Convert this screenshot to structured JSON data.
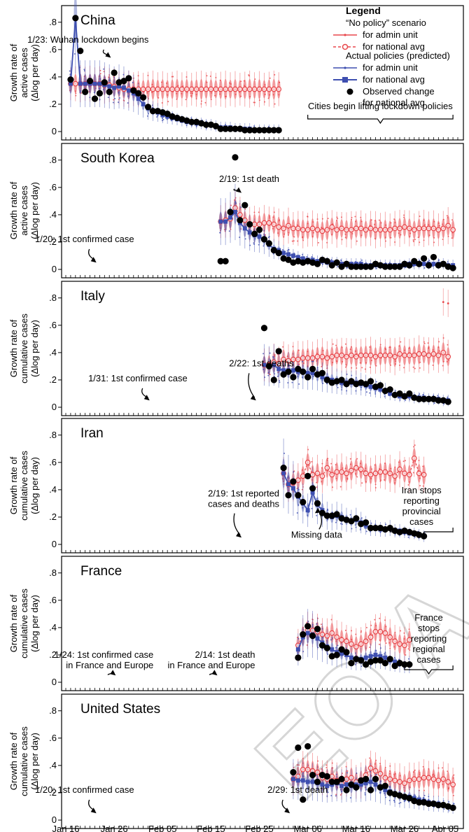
{
  "legend": {
    "title": "Legend",
    "group1_title": "“No policy” scenario",
    "group1_admin": "for admin unit",
    "group1_nat": "for national avg",
    "group2_title": "Actual policies (predicted)",
    "group2_admin": "for admin unit",
    "group2_nat": "for national avg",
    "obs_line1": "Observed change",
    "obs_line2": "for national avg"
  },
  "colors": {
    "no_policy": "#e8474b",
    "actual": "#3e4fb0",
    "observed": "#000000"
  },
  "x_ticks": [
    "Jan 16",
    "Jan 26",
    "Feb 05",
    "Feb 15",
    "Feb 25",
    "Mar 06",
    "Mar 16",
    "Mar 26",
    "Apr 05"
  ],
  "watermark": "EO A",
  "chart_data": [
    {
      "type": "line",
      "title": "China",
      "ylabel_1": "Growth rate of",
      "ylabel_2": "active cases",
      "ylabel_3": "(Δlog per day)",
      "ylim": [
        0,
        0.85
      ],
      "yticks": [
        0,
        0.2,
        0.4,
        0.6,
        0.8
      ],
      "ytick_labels": [
        "0",
        ".2",
        ".4",
        ".6",
        ".8"
      ],
      "x_start": "2020-01-17",
      "x_end": "2020-02-29",
      "no_policy": [
        0.35,
        0.35,
        0.35,
        0.35,
        0.35,
        0.35,
        0.35,
        0.34,
        0.34,
        0.33,
        0.32,
        0.31,
        0.31,
        0.31,
        0.31,
        0.31,
        0.31,
        0.31,
        0.31,
        0.31,
        0.31,
        0.31,
        0.31,
        0.31,
        0.31,
        0.31,
        0.31,
        0.31,
        0.31,
        0.31,
        0.31,
        0.31,
        0.31,
        0.31,
        0.31,
        0.31,
        0.31,
        0.31,
        0.31,
        0.31,
        0.31,
        0.31,
        0.31,
        0.31
      ],
      "actual": [
        0.35,
        0.83,
        0.35,
        0.35,
        0.35,
        0.35,
        0.35,
        0.34,
        0.33,
        0.32,
        0.33,
        0.32,
        0.3,
        0.28,
        0.24,
        0.2,
        0.17,
        0.15,
        0.14,
        0.12,
        0.11,
        0.1,
        0.09,
        0.08,
        0.07,
        0.07,
        0.06,
        0.06,
        0.05,
        0.05,
        0.04,
        0.03,
        0.03,
        0.03,
        0.02,
        0.02,
        0.02,
        0.02,
        0.01,
        0.01,
        0.01,
        0.01,
        0.01,
        0.01
      ],
      "observed": [
        0.38,
        0.83,
        0.59,
        0.29,
        0.37,
        0.24,
        0.28,
        0.36,
        0.29,
        0.43,
        0.36,
        0.37,
        0.39,
        0.3,
        0.28,
        0.25,
        0.18,
        0.15,
        0.15,
        0.14,
        0.13,
        0.11,
        0.1,
        0.09,
        0.08,
        0.07,
        0.07,
        0.06,
        0.05,
        0.05,
        0.04,
        0.02,
        0.02,
        0.02,
        0.02,
        0.02,
        0.01,
        0.01,
        0.01,
        0.01,
        0.01,
        0.01,
        0.01,
        0.01
      ],
      "annotations": [
        {
          "text": "1/23: Wuhan lockdown begins",
          "date": "2020-01-23",
          "y": 0.65,
          "arrow_to": 0.54
        }
      ],
      "bracket": {
        "text": "Cities begin lifting lockdown policies",
        "from": "2020-03-06",
        "to": "2020-04-05"
      },
      "extra_admin": []
    },
    {
      "type": "line",
      "title": "South Korea",
      "ylabel_1": "Growth rate of",
      "ylabel_2": "active cases",
      "ylabel_3": "(Δlog per day)",
      "ylim": [
        0,
        0.85
      ],
      "yticks": [
        0,
        0.2,
        0.4,
        0.6,
        0.8
      ],
      "ytick_labels": [
        "0",
        ".2",
        ".4",
        ".6",
        ".8"
      ],
      "x_start": "2020-02-17",
      "x_end": "2020-04-05",
      "no_policy": [
        0.35,
        0.36,
        0.37,
        0.45,
        0.4,
        0.36,
        0.33,
        0.33,
        0.33,
        0.34,
        0.34,
        0.33,
        0.31,
        0.3,
        0.32,
        0.3,
        0.3,
        0.29,
        0.29,
        0.3,
        0.29,
        0.28,
        0.29,
        0.31,
        0.29,
        0.3,
        0.29,
        0.29,
        0.3,
        0.3,
        0.29,
        0.3,
        0.29,
        0.29,
        0.29,
        0.29,
        0.3,
        0.3,
        0.31,
        0.3,
        0.29,
        0.3,
        0.3,
        0.3,
        0.3,
        0.29,
        0.3,
        0.32,
        0.29
      ],
      "actual": [
        0.35,
        0.35,
        0.38,
        0.42,
        0.34,
        0.3,
        0.27,
        0.25,
        0.24,
        0.22,
        0.18,
        0.15,
        0.14,
        0.12,
        0.11,
        0.1,
        0.09,
        0.08,
        0.07,
        0.07,
        0.06,
        0.06,
        0.05,
        0.05,
        0.05,
        0.04,
        0.04,
        0.04,
        0.04,
        0.04,
        0.03,
        0.03,
        0.03,
        0.03,
        0.03,
        0.03,
        0.03,
        0.03,
        0.03,
        0.04,
        0.04,
        0.04,
        0.04,
        0.04,
        0.04,
        0.04,
        0.04,
        0.03,
        0.03
      ],
      "observed": [
        0.06,
        0.06,
        0.42,
        0.82,
        0.36,
        0.47,
        0.33,
        0.26,
        0.29,
        0.22,
        0.19,
        0.14,
        0.12,
        0.08,
        0.07,
        0.05,
        0.06,
        0.05,
        0.06,
        0.05,
        0.04,
        0.07,
        0.06,
        0.03,
        0.05,
        0.02,
        0.04,
        0.02,
        0.02,
        0.02,
        0.02,
        0.02,
        0.04,
        0.03,
        0.02,
        0.02,
        0.02,
        0.02,
        0.04,
        0.03,
        0.06,
        0.04,
        0.08,
        0.03,
        0.09,
        0.03,
        0.04,
        0.02,
        0.01
      ],
      "annotations": [
        {
          "text": "2/19: 1st death",
          "date": "2020-02-19",
          "y": 0.64,
          "arrow_to": 0.56
        },
        {
          "text": "1/20: 1st confirmed case",
          "date": "2020-01-20",
          "y": 0.2,
          "arrow_to": 0.05
        }
      ],
      "bracket": null,
      "extra_admin": []
    },
    {
      "type": "line",
      "title": "Italy",
      "ylabel_1": "Growth rate of",
      "ylabel_2": "cumulative cases",
      "ylabel_3": "(Δlog per day)",
      "ylim": [
        0,
        0.85
      ],
      "yticks": [
        0,
        0.2,
        0.4,
        0.6,
        0.8
      ],
      "ytick_labels": [
        "0",
        ".2",
        ".4",
        ".6",
        ".8"
      ],
      "x_start": "2020-02-26",
      "x_end": "2020-04-05",
      "no_policy": [
        0.31,
        0.31,
        0.33,
        0.32,
        0.35,
        0.34,
        0.35,
        0.35,
        0.36,
        0.36,
        0.36,
        0.37,
        0.37,
        0.36,
        0.37,
        0.38,
        0.38,
        0.37,
        0.38,
        0.37,
        0.38,
        0.38,
        0.38,
        0.37,
        0.38,
        0.38,
        0.38,
        0.37,
        0.39,
        0.38,
        0.38,
        0.38,
        0.39,
        0.39,
        0.38,
        0.39,
        0.38,
        0.4,
        0.37
      ],
      "actual": [
        0.31,
        0.3,
        0.31,
        0.28,
        0.27,
        0.27,
        0.27,
        0.26,
        0.26,
        0.25,
        0.25,
        0.24,
        0.22,
        0.21,
        0.2,
        0.19,
        0.18,
        0.18,
        0.18,
        0.18,
        0.17,
        0.16,
        0.15,
        0.14,
        0.13,
        0.12,
        0.1,
        0.09,
        0.08,
        0.08,
        0.08,
        0.07,
        0.07,
        0.07,
        0.06,
        0.06,
        0.06,
        0.05,
        0.05
      ],
      "observed": [
        0.58,
        0.3,
        0.2,
        0.41,
        0.24,
        0.26,
        0.22,
        0.28,
        0.26,
        0.22,
        0.28,
        0.24,
        0.25,
        0.2,
        0.18,
        0.19,
        0.2,
        0.17,
        0.19,
        0.17,
        0.18,
        0.17,
        0.19,
        0.15,
        0.16,
        0.12,
        0.13,
        0.09,
        0.1,
        0.08,
        0.1,
        0.07,
        0.06,
        0.06,
        0.06,
        0.06,
        0.05,
        0.05,
        0.04
      ],
      "annotations": [
        {
          "text": "2/22: 1st deaths",
          "date": "2020-02-22",
          "y": 0.3,
          "arrow_to": 0.05
        },
        {
          "text": "1/31: 1st confirmed case",
          "date": "2020-01-31",
          "y": 0.19,
          "arrow_to": 0.05
        }
      ],
      "bracket": null,
      "extra_admin": [
        {
          "date": "2020-04-03",
          "y": 0.77
        },
        {
          "date": "2020-04-04",
          "y": 0.76
        }
      ]
    },
    {
      "type": "line",
      "title": "Iran",
      "ylabel_1": "Growth rate of",
      "ylabel_2": "cumulative cases",
      "ylabel_3": "(Δlog per day)",
      "ylim": [
        0,
        0.85
      ],
      "yticks": [
        0,
        0.2,
        0.4,
        0.6,
        0.8
      ],
      "ytick_labels": [
        "0",
        ".2",
        ".4",
        ".6",
        ".8"
      ],
      "x_start": "2020-03-01",
      "x_end": "2020-03-21",
      "no_policy": [
        0.52,
        0.44,
        0.45,
        0.47,
        0.5,
        0.6,
        0.51,
        0.52,
        0.5,
        0.56,
        0.51,
        0.53,
        0.53,
        0.52,
        0.54,
        0.56,
        0.55,
        0.52,
        0.51,
        0.52,
        0.53,
        0.53,
        0.52,
        0.5,
        0.55,
        0.52,
        0.51,
        0.63,
        0.52,
        0.51
      ],
      "actual": [
        0.52,
        0.44,
        0.41,
        0.35,
        0.3,
        0.25,
        0.38,
        0.29,
        0.25,
        0.21,
        0.2,
        0.21,
        0.2,
        0.18,
        0.17,
        0.18,
        0.16,
        0.14,
        0.12,
        0.12,
        0.11,
        0.11,
        0.12,
        0.1,
        0.1,
        0.09,
        0.08,
        0.08,
        0.07,
        0.06
      ],
      "observed": [
        0.56,
        0.36,
        0.46,
        0.36,
        0.31,
        0.5,
        0.41,
        0.3,
        0.23,
        0.21,
        0.21,
        0.22,
        0.19,
        0.18,
        0.17,
        0.19,
        0.15,
        0.16,
        0.12,
        0.12,
        0.12,
        0.11,
        0.12,
        0.1,
        0.09,
        0.1,
        0.09,
        0.08,
        0.07,
        0.06
      ],
      "annotations": [
        {
          "text": "2/19: 1st reported",
          "text2": "cases and deaths",
          "date": "2020-02-19",
          "y": 0.35,
          "arrow_to": 0.05
        },
        {
          "text": "Missing data",
          "date": "2020-03-04",
          "y": 0.07,
          "arrow_to": 0.22
        }
      ],
      "bracket": {
        "text": "Iran stops",
        "text2": "reporting",
        "text3": "provincial",
        "text4": "cases",
        "from": "2020-03-23",
        "to": "2020-04-05"
      },
      "extra_admin": []
    },
    {
      "type": "line",
      "title": "France",
      "ylabel_1": "Growth rate of",
      "ylabel_2": "cumulative cases",
      "ylabel_3": "(Δlog per day)",
      "ylim": [
        0,
        0.85
      ],
      "yticks": [
        0,
        0.2,
        0.4,
        0.6,
        0.8
      ],
      "ytick_labels": [
        "0",
        ".2",
        ".4",
        ".6",
        ".8"
      ],
      "x_start": "2020-03-04",
      "x_end": "2020-03-25",
      "no_policy": [
        0.27,
        0.34,
        0.38,
        0.38,
        0.37,
        0.35,
        0.34,
        0.36,
        0.33,
        0.31,
        0.3,
        0.28,
        0.26,
        0.28,
        0.3,
        0.33,
        0.37,
        0.37,
        0.36,
        0.33,
        0.3,
        0.28,
        0.27,
        0.31
      ],
      "actual": [
        0.24,
        0.33,
        0.36,
        0.35,
        0.32,
        0.29,
        0.26,
        0.24,
        0.22,
        0.21,
        0.2,
        0.18,
        0.17,
        0.17,
        0.18,
        0.19,
        0.2,
        0.19,
        0.18,
        0.16,
        0.15,
        0.14,
        0.13,
        0.13
      ],
      "observed": [
        0.18,
        0.35,
        0.41,
        0.34,
        0.39,
        0.27,
        0.25,
        0.19,
        0.2,
        0.24,
        0.22,
        0.14,
        0.17,
        0.16,
        0.13,
        0.15,
        0.16,
        0.16,
        0.14,
        0.17,
        0.12,
        0.14,
        0.13,
        0.13
      ],
      "annotations": [
        {
          "text": "1/24: 1st confirmed case",
          "text2": "in France and Europe",
          "date": "2020-01-24",
          "y": 0.18,
          "arrow_to": 0.05
        },
        {
          "text": "2/14: 1st death",
          "text2": "in France and Europe",
          "date": "2020-02-14",
          "y": 0.18,
          "arrow_to": 0.05
        }
      ],
      "bracket": {
        "text": "France",
        "text2": "stops",
        "text3": "reporting",
        "text4": "regional",
        "text5": "cases",
        "from": "2020-03-26",
        "to": "2020-04-05"
      },
      "extra_admin": []
    },
    {
      "type": "line",
      "title": "United States",
      "ylabel_1": "Growth rate of",
      "ylabel_2": "cumulative cases",
      "ylabel_3": "(Δlog per day)",
      "ylim": [
        0,
        0.85
      ],
      "yticks": [
        0,
        0.2,
        0.4,
        0.6,
        0.8
      ],
      "ytick_labels": [
        "0",
        ".2",
        ".4",
        ".6",
        ".8"
      ],
      "x_start": "2020-03-03",
      "x_end": "2020-04-05",
      "no_policy": [
        0.3,
        0.32,
        0.37,
        0.37,
        0.36,
        0.35,
        0.31,
        0.3,
        0.32,
        0.29,
        0.27,
        0.3,
        0.31,
        0.28,
        0.29,
        0.33,
        0.38,
        0.36,
        0.34,
        0.31,
        0.3,
        0.29,
        0.28,
        0.27,
        0.29,
        0.3,
        0.3,
        0.31,
        0.31,
        0.3,
        0.29,
        0.3,
        0.28,
        0.26
      ],
      "actual": [
        0.3,
        0.29,
        0.29,
        0.28,
        0.28,
        0.27,
        0.26,
        0.25,
        0.26,
        0.27,
        0.25,
        0.26,
        0.25,
        0.26,
        0.26,
        0.27,
        0.28,
        0.26,
        0.24,
        0.22,
        0.21,
        0.19,
        0.18,
        0.17,
        0.17,
        0.16,
        0.15,
        0.14,
        0.13,
        0.12,
        0.12,
        0.11,
        0.1,
        0.09
      ],
      "observed": [
        0.35,
        0.53,
        0.15,
        0.54,
        0.33,
        0.28,
        0.33,
        0.32,
        0.28,
        0.28,
        0.3,
        0.22,
        0.26,
        0.24,
        0.29,
        0.3,
        0.22,
        0.3,
        0.24,
        0.25,
        0.2,
        0.19,
        0.18,
        0.17,
        0.16,
        0.14,
        0.13,
        0.13,
        0.12,
        0.12,
        0.11,
        0.11,
        0.1,
        0.09
      ],
      "annotations": [
        {
          "text": "1/20: 1st confirmed case",
          "date": "2020-01-20",
          "y": 0.2,
          "arrow_to": 0.05
        },
        {
          "text": "2/29: 1st death",
          "date": "2020-02-29",
          "y": 0.2,
          "arrow_to": 0.05
        }
      ],
      "bracket": null,
      "extra_admin": []
    }
  ]
}
